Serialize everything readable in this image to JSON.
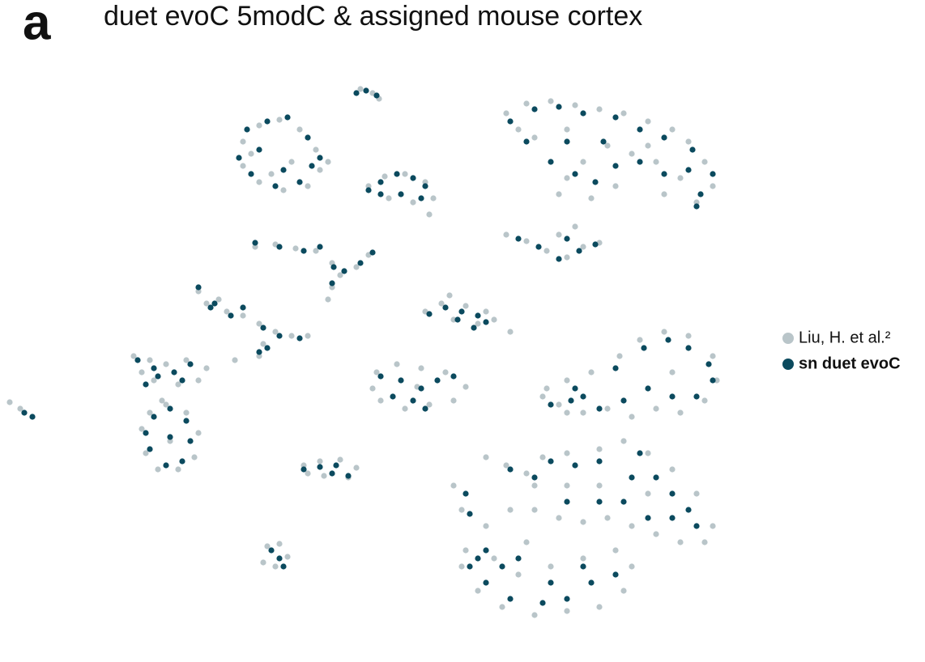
{
  "chart_data": {
    "type": "scatter",
    "panel_label": "a",
    "title": "duet evoC 5modC & assigned mouse cortex",
    "xlim": [
      0,
      900
    ],
    "ylim": [
      -810,
      -90
    ],
    "legend": "right",
    "series": [
      {
        "name": "Liu, H. et al.²",
        "color": "#b9c5c9",
        "x": [
          300,
          320,
          345,
          370,
          390,
          395,
          380,
          350,
          320,
          300,
          310,
          335,
          405,
          360,
          445,
          460,
          468,
          455,
          475,
          500,
          525,
          535,
          510,
          480,
          530,
          625,
          650,
          680,
          710,
          740,
          770,
          800,
          830,
          850,
          870,
          880,
          860,
          840,
          810,
          780,
          750,
          720,
          700,
          690,
          730,
          760,
          660,
          640,
          700,
          820,
          800,
          625,
          650,
          675,
          700,
          720,
          740,
          690,
          710,
          315,
          340,
          365,
          390,
          410,
          420,
          440,
          455,
          410,
          405,
          245,
          270,
          280,
          300,
          320,
          340,
          360,
          380,
          325,
          320,
          290,
          255,
          525,
          545,
          555,
          575,
          600,
          610,
          590,
          560,
          630,
          165,
          185,
          205,
          230,
          255,
          245,
          220,
          190,
          175,
          185,
          205,
          230,
          245,
          240,
          220,
          195,
          180,
          175,
          210,
          200,
          12,
          25,
          40,
          465,
          490,
          520,
          550,
          575,
          560,
          530,
          500,
          470,
          460,
          515,
          375,
          395,
          420,
          440,
          430,
          400,
          380,
          330,
          345,
          355,
          340,
          325,
          675,
          700,
          730,
          765,
          790,
          820,
          850,
          880,
          885,
          870,
          840,
          810,
          780,
          750,
          720,
          690,
          670,
          700,
          830,
          600,
          625,
          650,
          670,
          700,
          740,
          770,
          800,
          830,
          860,
          880,
          870,
          840,
          810,
          780,
          750,
          720,
          690,
          660,
          630,
          600,
          575,
          570,
          590,
          620,
          660,
          700,
          740,
          770,
          780,
          760,
          720,
          680,
          640,
          610,
          650,
          560,
          570,
          800,
          700,
          660,
          740
        ],
        "values": [
          -175,
          -155,
          -148,
          -160,
          -185,
          -210,
          -230,
          -235,
          -225,
          -205,
          -190,
          -215,
          -200,
          -200,
          -110,
          -115,
          -122,
          -230,
          -218,
          -215,
          -225,
          -245,
          -250,
          -245,
          -265,
          -140,
          -128,
          -125,
          -130,
          -135,
          -140,
          -150,
          -160,
          -175,
          -200,
          -230,
          -250,
          -220,
          -200,
          -190,
          -180,
          -200,
          -220,
          -240,
          -245,
          -230,
          -170,
          -160,
          -160,
          -240,
          -180,
          -290,
          -298,
          -310,
          -318,
          -305,
          -300,
          -290,
          -280,
          -305,
          -302,
          -307,
          -310,
          -325,
          -340,
          -330,
          -315,
          -355,
          -370,
          -360,
          -370,
          -385,
          -390,
          -400,
          -410,
          -415,
          -415,
          -425,
          -440,
          -445,
          -375,
          -385,
          -375,
          -365,
          -378,
          -385,
          -395,
          -400,
          -395,
          -410,
          -440,
          -445,
          -450,
          -445,
          -455,
          -470,
          -475,
          -470,
          -460,
          -510,
          -500,
          -510,
          -535,
          -565,
          -580,
          -580,
          -560,
          -530,
          -545,
          -495,
          -497,
          -505,
          -515,
          -460,
          -450,
          -455,
          -460,
          -478,
          -495,
          -500,
          -505,
          -495,
          -480,
          -478,
          -575,
          -570,
          -568,
          -578,
          -590,
          -588,
          -585,
          -675,
          -672,
          -688,
          -700,
          -695,
          -480,
          -470,
          -460,
          -440,
          -420,
          -410,
          -415,
          -440,
          -470,
          -495,
          -510,
          -505,
          -515,
          -505,
          -510,
          -500,
          -490,
          -510,
          -460,
          -565,
          -575,
          -585,
          -565,
          -560,
          -555,
          -545,
          -560,
          -580,
          -610,
          -650,
          -670,
          -670,
          -660,
          -650,
          -640,
          -645,
          -640,
          -630,
          -630,
          -650,
          -680,
          -700,
          -730,
          -750,
          -760,
          -755,
          -750,
          -730,
          -700,
          -680,
          -690,
          -700,
          -710,
          -690,
          -670,
          -600,
          -630,
          -610,
          -600,
          -600,
          -600
        ]
      },
      {
        "name": "sn duet evoC",
        "color": "#0b4a5e",
        "x": [
          305,
          330,
          355,
          380,
          385,
          370,
          340,
          310,
          295,
          320,
          350,
          395,
          440,
          452,
          465,
          455,
          470,
          490,
          510,
          525,
          520,
          495,
          470,
          630,
          660,
          690,
          720,
          760,
          790,
          820,
          855,
          880,
          865,
          850,
          820,
          790,
          760,
          735,
          710,
          680,
          650,
          700,
          745,
          860,
          640,
          665,
          690,
          715,
          735,
          700,
          315,
          345,
          375,
          395,
          412,
          425,
          445,
          460,
          410,
          245,
          265,
          285,
          300,
          325,
          345,
          370,
          330,
          320,
          260,
          530,
          550,
          570,
          590,
          600,
          585,
          565,
          170,
          190,
          215,
          235,
          225,
          195,
          180,
          190,
          210,
          230,
          235,
          225,
          205,
          185,
          180,
          210,
          30,
          40,
          470,
          495,
          520,
          540,
          510,
          485,
          525,
          560,
          375,
          395,
          410,
          430,
          415,
          335,
          345,
          350,
          680,
          705,
          720,
          760,
          795,
          825,
          850,
          875,
          880,
          860,
          830,
          800,
          770,
          740,
          710,
          575,
          580,
          630,
          660,
          680,
          710,
          740,
          780,
          810,
          830,
          850,
          860,
          830,
          800,
          770,
          740,
          700,
          600,
          580,
          600,
          630,
          670,
          700,
          730,
          760,
          720,
          680,
          640,
          620,
          590,
          790
        ],
        "values": [
          -160,
          -150,
          -145,
          -170,
          -205,
          -225,
          -230,
          -215,
          -195,
          -185,
          -210,
          -195,
          -115,
          -112,
          -118,
          -235,
          -225,
          -215,
          -220,
          -230,
          -245,
          -240,
          -240,
          -150,
          -135,
          -132,
          -140,
          -145,
          -160,
          -170,
          -185,
          -215,
          -240,
          -210,
          -215,
          -200,
          -205,
          -225,
          -215,
          -200,
          -175,
          -175,
          -175,
          -255,
          -295,
          -305,
          -320,
          -310,
          -302,
          -295,
          -300,
          -305,
          -310,
          -305,
          -330,
          -335,
          -325,
          -312,
          -350,
          -355,
          -375,
          -390,
          -380,
          -405,
          -415,
          -418,
          -430,
          -435,
          -380,
          -388,
          -380,
          -385,
          -390,
          -398,
          -405,
          -395,
          -445,
          -455,
          -460,
          -450,
          -470,
          -465,
          -475,
          -515,
          -505,
          -520,
          -545,
          -570,
          -575,
          -555,
          -535,
          -540,
          -510,
          -515,
          -465,
          -470,
          -480,
          -470,
          -495,
          -490,
          -505,
          -465,
          -580,
          -577,
          -585,
          -588,
          -575,
          -680,
          -690,
          -700,
          -500,
          -495,
          -490,
          -455,
          -430,
          -420,
          -430,
          -450,
          -470,
          -490,
          -490,
          -480,
          -495,
          -505,
          -480,
          -610,
          -635,
          -580,
          -590,
          -570,
          -575,
          -570,
          -590,
          -590,
          -610,
          -630,
          -650,
          -640,
          -640,
          -620,
          -620,
          -620,
          -680,
          -700,
          -720,
          -740,
          -745,
          -740,
          -720,
          -710,
          -700,
          -720,
          -690,
          -700,
          -690,
          -560
        ]
      }
    ]
  }
}
